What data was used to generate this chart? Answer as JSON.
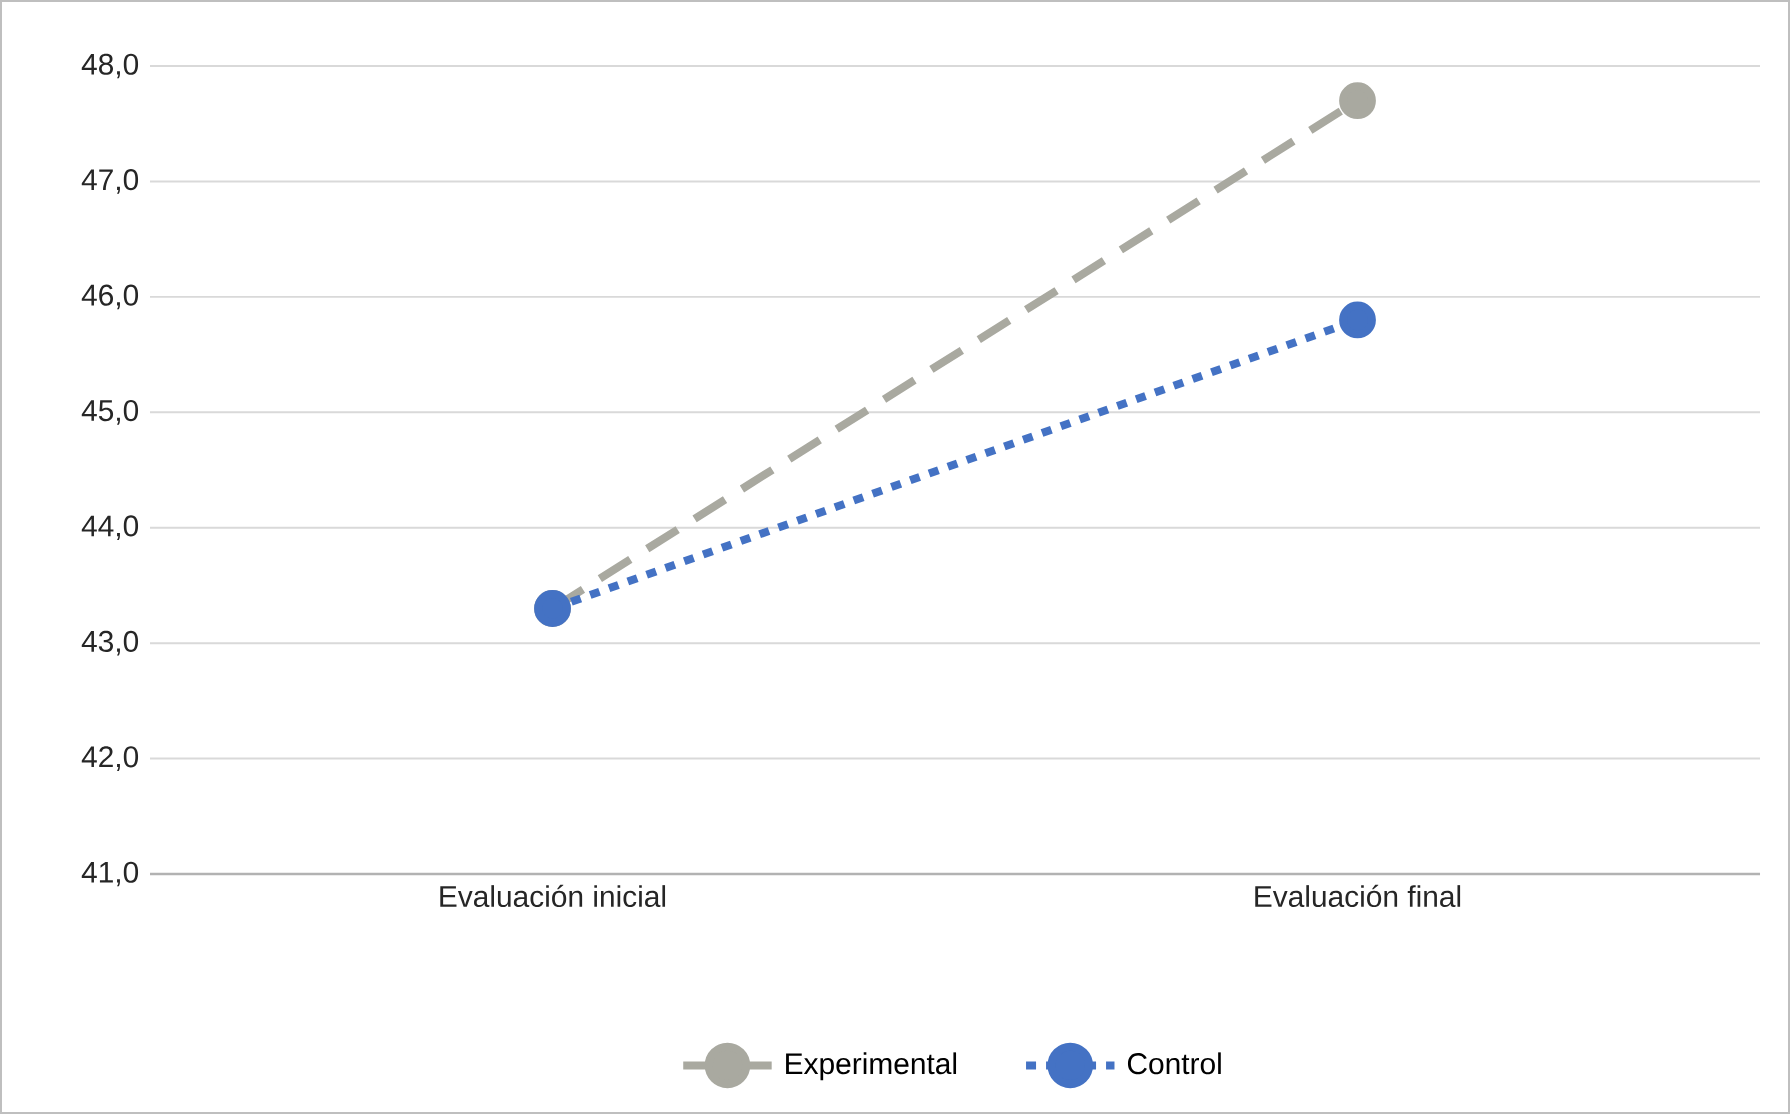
{
  "chart_data": {
    "type": "line",
    "categories": [
      "Evaluación inicial",
      "Evaluación final"
    ],
    "series": [
      {
        "name": "Experimental",
        "color": "#a9a9a0",
        "values": [
          43.3,
          47.7
        ],
        "line_style": "dashed"
      },
      {
        "name": "Control",
        "color": "#4472c4",
        "values": [
          43.3,
          45.8
        ],
        "line_style": "dotted"
      }
    ],
    "ylim": [
      41,
      48
    ],
    "yticks": [
      {
        "value": 41,
        "label": "41,0"
      },
      {
        "value": 42,
        "label": "42,0"
      },
      {
        "value": 43,
        "label": "43,0"
      },
      {
        "value": 44,
        "label": "44,0"
      },
      {
        "value": 45,
        "label": "45,0"
      },
      {
        "value": 46,
        "label": "46,0"
      },
      {
        "value": 47,
        "label": "47,0"
      },
      {
        "value": 48,
        "label": "48,0"
      }
    ],
    "grid": "y",
    "legend": "bottom",
    "marker": "circle"
  }
}
